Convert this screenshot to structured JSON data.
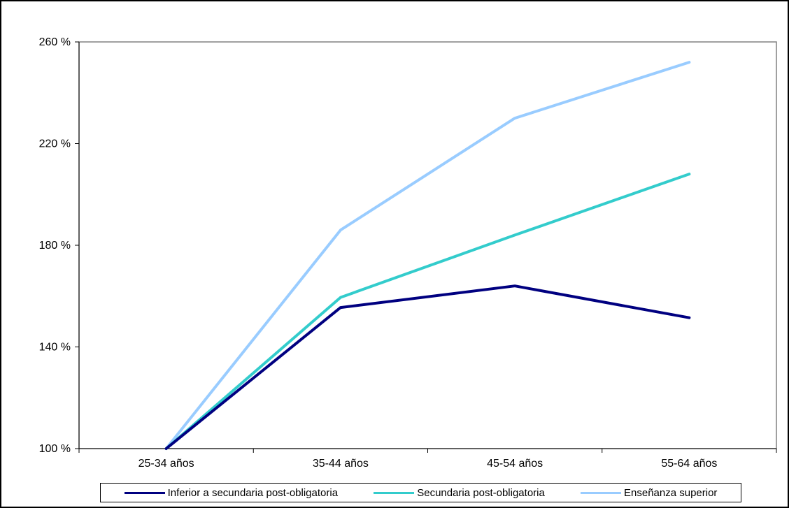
{
  "chart_data": {
    "type": "line",
    "title": "",
    "xlabel": "",
    "ylabel": "",
    "categories": [
      "25-34 años",
      "35-44 años",
      "45-54 años",
      "55-64 años"
    ],
    "y_tick_labels": [
      "100 %",
      "140 %",
      "180 %",
      "220 %",
      "260 %"
    ],
    "y_ticks": [
      100,
      140,
      180,
      220,
      260
    ],
    "ylim": [
      100,
      260
    ],
    "grid": false,
    "legend_position": "bottom",
    "series": [
      {
        "name": "Inferior a secundaria post-obligatoria",
        "values": [
          100,
          155.5,
          164,
          151.5
        ],
        "color": "#000080"
      },
      {
        "name": "Secundaria post-obligatoria",
        "values": [
          100,
          159.5,
          184,
          208
        ],
        "color": "#33CCCC"
      },
      {
        "name": "Enseñanza superior",
        "values": [
          100,
          186,
          230,
          252
        ],
        "color": "#99CCFF"
      }
    ]
  }
}
